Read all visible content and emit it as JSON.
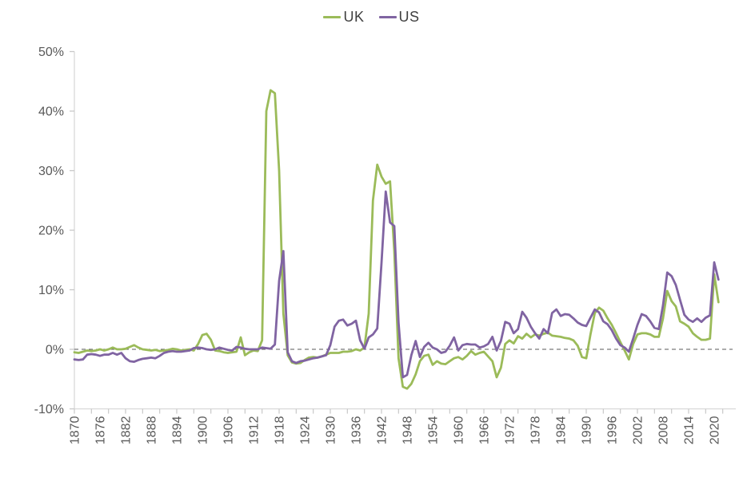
{
  "legend": {
    "position": "top-center",
    "items": [
      {
        "label": "UK",
        "color": "#9BBB59"
      },
      {
        "label": "US",
        "color": "#8064A2"
      }
    ]
  },
  "chart_data": {
    "type": "line",
    "title": "",
    "x": {
      "start_year": 1870,
      "end_year": 2021,
      "step": 1
    },
    "series": [
      {
        "name": "UK",
        "color": "#9BBB59",
        "values": [
          -0.5,
          -0.6,
          -0.4,
          -0.2,
          -0.3,
          -0.2,
          0.0,
          -0.2,
          0.0,
          0.3,
          0.0,
          0.0,
          0.1,
          0.4,
          0.7,
          0.3,
          0.0,
          -0.1,
          -0.2,
          -0.1,
          -0.3,
          -0.2,
          -0.1,
          0.1,
          0.0,
          -0.2,
          -0.1,
          0.0,
          -0.2,
          0.9,
          2.4,
          2.6,
          1.6,
          -0.2,
          -0.3,
          -0.5,
          -0.6,
          -0.5,
          -0.4,
          2.0,
          -1.0,
          -0.5,
          -0.2,
          -0.3,
          1.5,
          40.0,
          43.5,
          43.0,
          30.0,
          6.0,
          -1.0,
          -2.2,
          -2.4,
          -2.3,
          -1.8,
          -1.4,
          -1.3,
          -1.4,
          -1.2,
          -0.9,
          -0.6,
          -0.6,
          -0.6,
          -0.4,
          -0.4,
          -0.3,
          0.0,
          -0.2,
          0.3,
          6.0,
          25.0,
          31.0,
          29.0,
          27.8,
          28.2,
          16.5,
          -1.5,
          -6.3,
          -6.6,
          -5.8,
          -4.2,
          -2.0,
          -1.1,
          -0.9,
          -2.6,
          -2.0,
          -2.4,
          -2.5,
          -2.0,
          -1.5,
          -1.3,
          -1.7,
          -1.1,
          -0.3,
          -0.9,
          -0.6,
          -0.4,
          -1.2,
          -2.0,
          -4.7,
          -3.1,
          0.9,
          1.5,
          1.0,
          2.2,
          1.8,
          2.6,
          2.0,
          2.5,
          2.3,
          2.6,
          2.8,
          2.3,
          2.2,
          2.1,
          1.9,
          1.8,
          1.5,
          0.6,
          -1.3,
          -1.5,
          2.5,
          6.1,
          7.0,
          6.5,
          5.2,
          4.1,
          2.7,
          1.2,
          -0.2,
          -1.7,
          0.9,
          2.5,
          2.7,
          2.7,
          2.5,
          2.1,
          2.1,
          5.2,
          9.8,
          8.1,
          7.2,
          4.7,
          4.3,
          3.8,
          2.7,
          2.1,
          1.6,
          1.6,
          1.8,
          12.6,
          7.9
        ]
      },
      {
        "name": "US",
        "color": "#8064A2",
        "values": [
          -1.7,
          -1.8,
          -1.7,
          -0.9,
          -0.8,
          -0.9,
          -1.1,
          -0.9,
          -0.9,
          -0.6,
          -0.9,
          -0.6,
          -1.5,
          -2.0,
          -2.1,
          -1.8,
          -1.6,
          -1.5,
          -1.4,
          -1.5,
          -1.1,
          -0.6,
          -0.4,
          -0.3,
          -0.4,
          -0.4,
          -0.3,
          -0.2,
          0.2,
          0.3,
          0.2,
          0.0,
          -0.1,
          0.0,
          0.3,
          0.1,
          -0.1,
          -0.2,
          0.4,
          0.3,
          0.1,
          0.0,
          0.0,
          0.0,
          0.3,
          0.2,
          0.1,
          0.8,
          11.5,
          16.5,
          -0.5,
          -2.0,
          -2.3,
          -2.0,
          -1.9,
          -1.7,
          -1.5,
          -1.4,
          -1.2,
          -1.0,
          0.7,
          3.8,
          4.8,
          5.0,
          4.0,
          4.3,
          4.8,
          1.5,
          0.1,
          2.0,
          2.5,
          3.5,
          14.5,
          26.5,
          21.3,
          20.7,
          4.5,
          -4.7,
          -4.3,
          -1.0,
          1.4,
          -1.3,
          0.4,
          1.1,
          0.3,
          0.0,
          -0.6,
          -0.4,
          0.6,
          2.0,
          -0.2,
          0.7,
          0.9,
          0.8,
          0.8,
          0.3,
          0.5,
          0.9,
          2.1,
          -0.2,
          1.4,
          4.6,
          4.3,
          2.7,
          3.4,
          6.3,
          5.3,
          3.8,
          2.7,
          1.8,
          3.4,
          2.7,
          6.1,
          6.7,
          5.6,
          5.9,
          5.8,
          5.2,
          4.5,
          4.1,
          3.9,
          5.3,
          6.7,
          6.2,
          4.7,
          4.2,
          3.2,
          1.8,
          0.7,
          0.3,
          -0.4,
          1.8,
          4.1,
          5.9,
          5.6,
          4.7,
          3.6,
          3.4,
          7.4,
          12.9,
          12.3,
          10.8,
          8.3,
          5.8,
          5.0,
          4.6,
          5.2,
          4.6,
          5.3,
          5.7,
          14.6,
          11.7
        ]
      }
    ],
    "y_axis": {
      "unit": "%",
      "min": -10,
      "max": 50,
      "tick_values": [
        50,
        40,
        30,
        20,
        10,
        0,
        -10
      ],
      "tick_labels": [
        "50%",
        "40%",
        "30%",
        "20%",
        "10%",
        "0%",
        "-10%"
      ]
    },
    "x_axis": {
      "tick_labels": [
        "1870",
        "1876",
        "1882",
        "1888",
        "1894",
        "1900",
        "1906",
        "1912",
        "1918",
        "1924",
        "1930",
        "1936",
        "1942",
        "1948",
        "1954",
        "1960",
        "1966",
        "1972",
        "1978",
        "1984",
        "1990",
        "1996",
        "2002",
        "2008",
        "2014",
        "2020"
      ],
      "label_interval_years": 6,
      "tick_interval_years": 4,
      "label_rotation_degrees": -90
    },
    "zero_line": {
      "style": "dashed",
      "color": "#595959"
    },
    "gridlines": "none",
    "legend_position": "top-center"
  },
  "colors": {
    "axis_line": "#D9D9D9",
    "tick_mark": "#C8C8C8",
    "axis_label_text": "#595959",
    "legend_text": "#404040",
    "background": "#FFFFFF"
  }
}
